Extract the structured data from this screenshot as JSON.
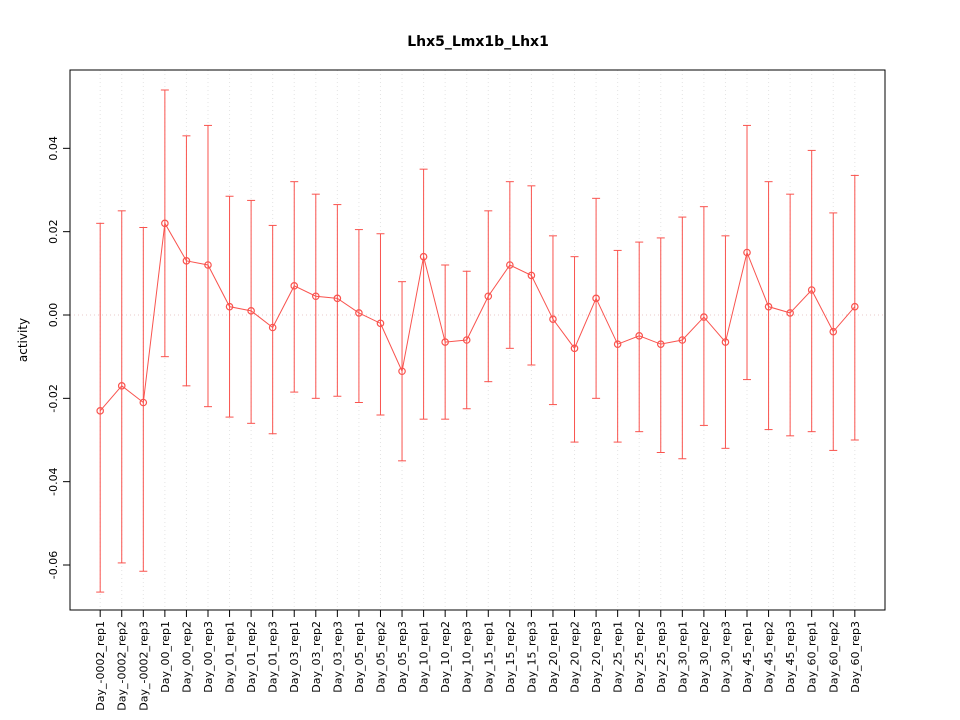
{
  "chart_data": {
    "type": "line",
    "title": "Lhx5_Lmx1b_Lhx1",
    "xlabel": "",
    "ylabel": "activity",
    "ylim": [
      -0.0708,
      0.0588
    ],
    "yticks": [
      0.04,
      0.02,
      0.0,
      -0.02,
      -0.04,
      -0.06
    ],
    "ytick_labels": [
      "0.04",
      "0.02",
      "0.00",
      "-0.02",
      "-0.04",
      "-0.06"
    ],
    "grid": true,
    "zero_line": true,
    "legend": "none",
    "point_style": "open-circle",
    "error_bars": true,
    "colors": {
      "series": "#f9534e",
      "grid": "#e4e4e4",
      "zero_line": "#e9c9c9",
      "axis": "#000000"
    },
    "categories": [
      "Day_-0002_rep1",
      "Day_-0002_rep2",
      "Day_-0002_rep3",
      "Day_00_rep1",
      "Day_00_rep2",
      "Day_00_rep3",
      "Day_01_rep1",
      "Day_01_rep2",
      "Day_01_rep3",
      "Day_03_rep1",
      "Day_03_rep2",
      "Day_03_rep3",
      "Day_05_rep1",
      "Day_05_rep2",
      "Day_05_rep3",
      "Day_10_rep1",
      "Day_10_rep2",
      "Day_10_rep3",
      "Day_15_rep1",
      "Day_15_rep2",
      "Day_15_rep3",
      "Day_20_rep1",
      "Day_20_rep2",
      "Day_20_rep3",
      "Day_25_rep1",
      "Day_25_rep2",
      "Day_25_rep3",
      "Day_30_rep1",
      "Day_30_rep2",
      "Day_30_rep3",
      "Day_45_rep1",
      "Day_45_rep2",
      "Day_45_rep3",
      "Day_60_rep1",
      "Day_60_rep2",
      "Day_60_rep3"
    ],
    "values": [
      -0.023,
      -0.017,
      -0.021,
      0.022,
      0.013,
      0.012,
      0.002,
      0.001,
      -0.003,
      0.007,
      0.0045,
      0.004,
      0.0005,
      -0.002,
      -0.0135,
      0.014,
      -0.0065,
      -0.006,
      0.0045,
      0.012,
      0.0095,
      -0.001,
      -0.008,
      0.004,
      -0.007,
      -0.005,
      -0.007,
      -0.006,
      -0.0005,
      -0.0065,
      0.015,
      0.002,
      0.0005,
      0.006,
      -0.004,
      0.002
    ],
    "upper": [
      0.022,
      0.025,
      0.021,
      0.054,
      0.043,
      0.0455,
      0.0285,
      0.0275,
      0.0215,
      0.032,
      0.029,
      0.0265,
      0.0205,
      0.0195,
      0.008,
      0.035,
      0.012,
      0.0105,
      0.025,
      0.032,
      0.031,
      0.019,
      0.014,
      0.028,
      0.0155,
      0.0175,
      0.0185,
      0.0235,
      0.026,
      0.019,
      0.0455,
      0.032,
      0.029,
      0.0395,
      0.0245,
      0.0335
    ],
    "lower": [
      -0.0665,
      -0.0595,
      -0.0615,
      -0.01,
      -0.017,
      -0.022,
      -0.0245,
      -0.026,
      -0.0285,
      -0.0185,
      -0.02,
      -0.0195,
      -0.021,
      -0.024,
      -0.035,
      -0.025,
      -0.025,
      -0.0225,
      -0.016,
      -0.008,
      -0.012,
      -0.0215,
      -0.0305,
      -0.02,
      -0.0305,
      -0.028,
      -0.033,
      -0.0345,
      -0.0265,
      -0.032,
      -0.0155,
      -0.0275,
      -0.029,
      -0.028,
      -0.0325,
      -0.03
    ]
  }
}
